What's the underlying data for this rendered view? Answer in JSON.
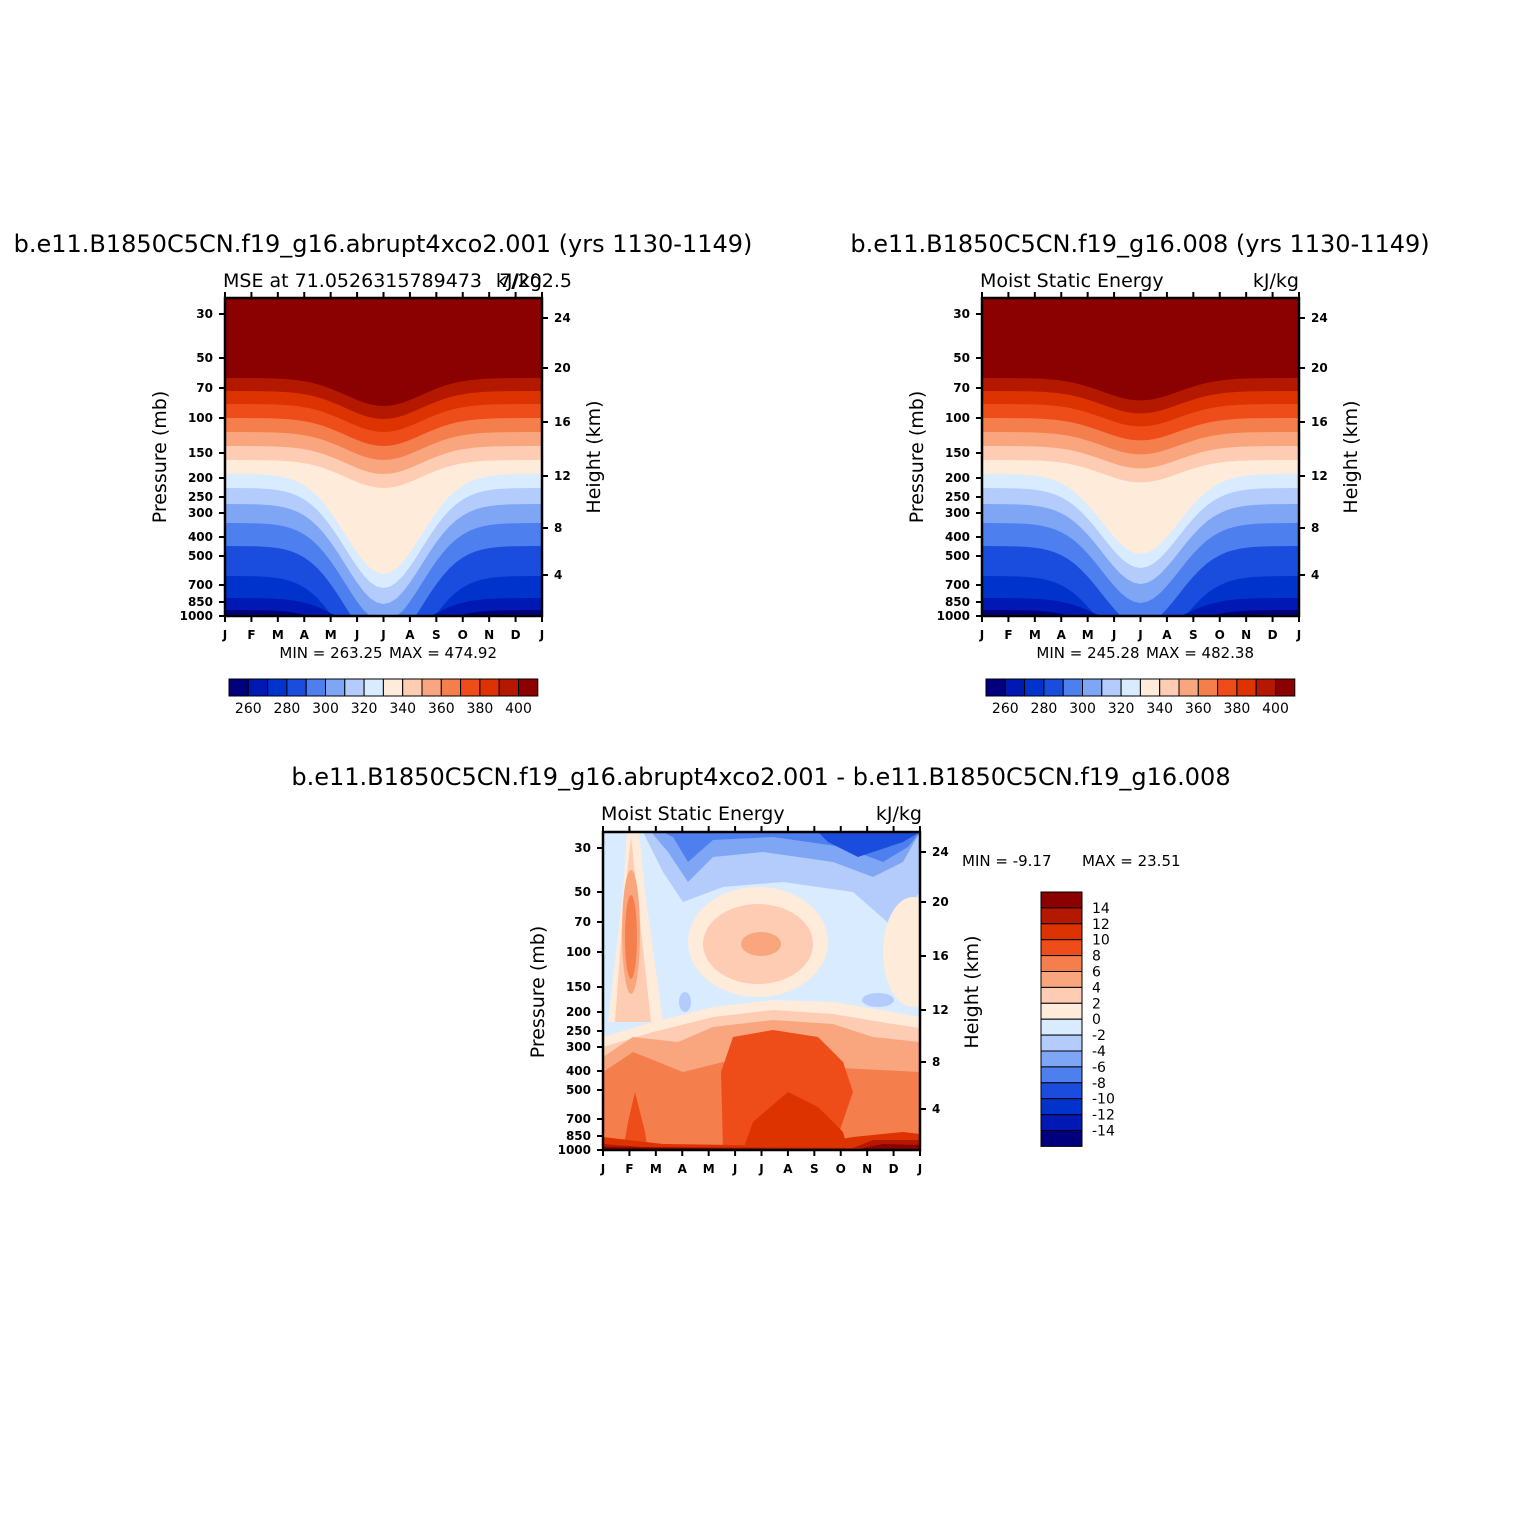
{
  "chart_data": [
    {
      "type": "heatmap",
      "title": "b.e11.B1850C5CN.f19_g16.abrupt4xco2.001 (yrs 1130-1149)",
      "subtitle_left": "MSE at 71.0526315789473",
      "subtitle_right": "kJ/kg",
      "subtitle_overlap": "7/202.5",
      "months": [
        "J",
        "F",
        "M",
        "A",
        "M",
        "J",
        "J",
        "A",
        "S",
        "O",
        "N",
        "D",
        "J"
      ],
      "pressure_ticks": [
        "30",
        "50",
        "70",
        "100",
        "150",
        "200",
        "250",
        "300",
        "400",
        "500",
        "700",
        "850",
        "1000"
      ],
      "height_ticks": [
        "24",
        "20",
        "16",
        "12",
        "8",
        "4"
      ],
      "ylabel": "Pressure (mb)",
      "ylabel_right": "Height (km)",
      "min_text": "MIN = 263.25",
      "max_text": "MAX = 474.92",
      "colorbar_labels": [
        "260",
        "280",
        "300",
        "320",
        "340",
        "360",
        "380",
        "400"
      ],
      "trough_depth": 1.0
    },
    {
      "type": "heatmap",
      "title": "b.e11.B1850C5CN.f19_g16.008 (yrs 1130-1149)",
      "subtitle_left": "Moist Static Energy",
      "subtitle_right": "kJ/kg",
      "months": [
        "J",
        "F",
        "M",
        "A",
        "M",
        "J",
        "J",
        "A",
        "S",
        "O",
        "N",
        "D",
        "J"
      ],
      "pressure_ticks": [
        "30",
        "50",
        "70",
        "100",
        "150",
        "200",
        "250",
        "300",
        "400",
        "500",
        "700",
        "850",
        "1000"
      ],
      "height_ticks": [
        "24",
        "20",
        "16",
        "12",
        "8",
        "4"
      ],
      "ylabel": "Pressure (mb)",
      "ylabel_right": "Height (km)",
      "min_text": "MIN = 245.28",
      "max_text": "MAX = 482.38",
      "colorbar_labels": [
        "260",
        "280",
        "300",
        "320",
        "340",
        "360",
        "380",
        "400"
      ],
      "trough_depth": 0.8
    },
    {
      "type": "heatmap",
      "title": "b.e11.B1850C5CN.f19_g16.abrupt4xco2.001 - b.e11.B1850C5CN.f19_g16.008",
      "subtitle_left": "Moist Static Energy",
      "subtitle_right": "kJ/kg",
      "months": [
        "J",
        "F",
        "M",
        "A",
        "M",
        "J",
        "J",
        "A",
        "S",
        "O",
        "N",
        "D",
        "J"
      ],
      "pressure_ticks": [
        "30",
        "50",
        "70",
        "100",
        "150",
        "200",
        "250",
        "300",
        "400",
        "500",
        "700",
        "850",
        "1000"
      ],
      "height_ticks": [
        "24",
        "20",
        "16",
        "12",
        "8",
        "4"
      ],
      "ylabel": "Pressure (mb)",
      "ylabel_right": "Height (km)",
      "min_text": "MIN = -9.17",
      "max_text": "MAX = 23.51",
      "colorbar_labels": [
        "14",
        "12",
        "10",
        "8",
        "6",
        "4",
        "2",
        "0",
        "-2",
        "-4",
        "-6",
        "-8",
        "-10",
        "-12",
        "-14"
      ]
    }
  ],
  "palette": [
    "#00007f",
    "#0019b4",
    "#0033cc",
    "#1a4ddd",
    "#4d7fee",
    "#7fa6f5",
    "#b3ccfc",
    "#d9ebff",
    "#ffebd9",
    "#fdccb3",
    "#f9a67f",
    "#f47f4d",
    "#ee4d1a",
    "#dd3300",
    "#b41900",
    "#8b0000"
  ]
}
